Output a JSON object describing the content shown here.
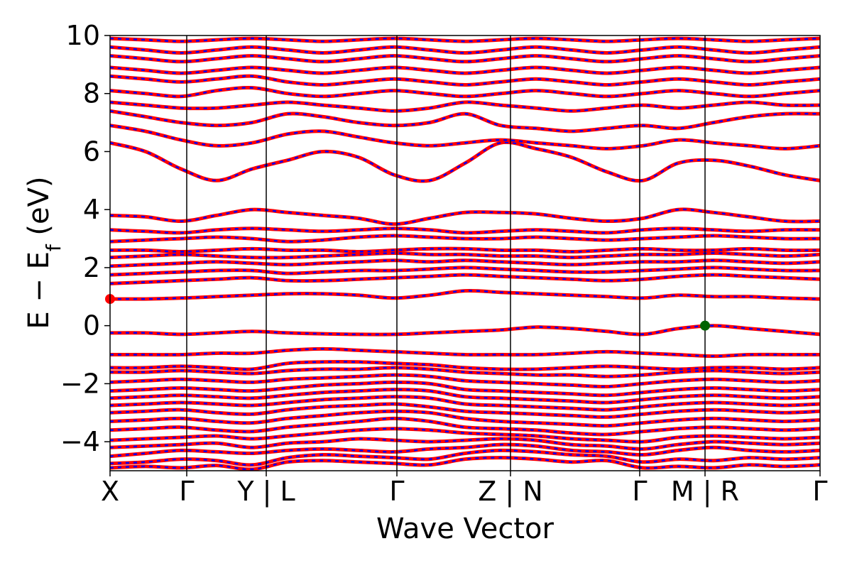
{
  "chart_data": {
    "type": "line",
    "xlabel": "Wave Vector",
    "ylabel_main": "E − E",
    "ylabel_sub": "f",
    "ylabel_unit": " (eV)",
    "ylim": [
      -5,
      10
    ],
    "yticks": [
      {
        "value": -4,
        "label": "−4"
      },
      {
        "value": -2,
        "label": "−2"
      },
      {
        "value": 0,
        "label": "0"
      },
      {
        "value": 2,
        "label": "2"
      },
      {
        "value": 4,
        "label": "4"
      },
      {
        "value": 6,
        "label": "6"
      },
      {
        "value": 8,
        "label": "8"
      },
      {
        "value": 10,
        "label": "10"
      }
    ],
    "xlim": [
      0,
      10
    ],
    "xticks": [
      {
        "value": 0,
        "label": "X"
      },
      {
        "value": 1.08,
        "label": "Γ"
      },
      {
        "value": 2.2,
        "label": "Y | L"
      },
      {
        "value": 4.04,
        "label": "Γ"
      },
      {
        "value": 5.64,
        "label": "Z | N"
      },
      {
        "value": 7.46,
        "label": "Γ"
      },
      {
        "value": 8.38,
        "label": "M | R"
      },
      {
        "value": 10,
        "label": "Γ"
      }
    ],
    "grid": false,
    "spin_up_color": "#ff0000",
    "spin_down_color": "#0000ff",
    "cbm_marker": {
      "x": 0,
      "y": 0.92,
      "color": "#ff0000"
    },
    "vbm_marker": {
      "x": 8.38,
      "y": 0.0,
      "color": "#006400"
    },
    "bands": [
      [
        -4.9,
        -4.85,
        -4.9,
        -4.82,
        -4.95,
        -4.7,
        -4.65,
        -4.7,
        -4.75,
        -4.8,
        -4.6,
        -4.55,
        -4.6,
        -4.7,
        -4.65,
        -4.9,
        -4.85,
        -4.9,
        -4.8,
        -4.85,
        -4.8
      ],
      [
        -4.75,
        -4.7,
        -4.6,
        -4.65,
        -4.8,
        -4.55,
        -4.45,
        -4.5,
        -4.55,
        -4.6,
        -4.4,
        -4.3,
        -4.35,
        -4.45,
        -4.5,
        -4.7,
        -4.6,
        -4.65,
        -4.55,
        -4.6,
        -4.55
      ],
      [
        -4.5,
        -4.4,
        -4.3,
        -4.35,
        -4.4,
        -4.3,
        -4.25,
        -4.3,
        -4.35,
        -4.25,
        -4.2,
        -4.1,
        -4.15,
        -4.3,
        -4.35,
        -4.45,
        -4.3,
        -4.2,
        -4.3,
        -4.35,
        -4.3
      ],
      [
        -4.2,
        -4.15,
        -4.1,
        -4.05,
        -4.2,
        -4.05,
        -4.0,
        -3.9,
        -3.95,
        -4.0,
        -3.95,
        -3.9,
        -3.95,
        -4.1,
        -4.15,
        -4.25,
        -4.1,
        -4.0,
        -4.05,
        -4.1,
        -4.05
      ],
      [
        -3.95,
        -3.9,
        -3.85,
        -3.8,
        -3.9,
        -3.8,
        -3.7,
        -3.6,
        -3.55,
        -3.6,
        -3.7,
        -3.75,
        -3.8,
        -3.9,
        -3.95,
        -4.0,
        -3.85,
        -3.8,
        -3.85,
        -3.9,
        -3.85
      ],
      [
        -3.6,
        -3.55,
        -3.5,
        -3.6,
        -3.65,
        -3.5,
        -3.4,
        -3.3,
        -3.2,
        -3.3,
        -3.5,
        -3.55,
        -3.6,
        -3.7,
        -3.75,
        -3.65,
        -3.55,
        -3.5,
        -3.55,
        -3.6,
        -3.55
      ],
      [
        -3.3,
        -3.25,
        -3.2,
        -3.3,
        -3.35,
        -3.2,
        -3.1,
        -3.0,
        -2.95,
        -3.0,
        -3.2,
        -3.3,
        -3.35,
        -3.4,
        -3.45,
        -3.35,
        -3.25,
        -3.2,
        -3.25,
        -3.3,
        -3.25
      ],
      [
        -3.0,
        -2.95,
        -2.9,
        -3.0,
        -3.05,
        -2.9,
        -2.8,
        -2.75,
        -2.7,
        -2.8,
        -2.95,
        -3.0,
        -3.05,
        -3.1,
        -3.15,
        -3.05,
        -2.95,
        -2.9,
        -2.95,
        -3.0,
        -2.95
      ],
      [
        -2.75,
        -2.7,
        -2.65,
        -2.7,
        -2.75,
        -2.65,
        -2.55,
        -2.5,
        -2.45,
        -2.5,
        -2.7,
        -2.75,
        -2.8,
        -2.85,
        -2.9,
        -2.8,
        -2.7,
        -2.65,
        -2.7,
        -2.75,
        -2.7
      ],
      [
        -2.5,
        -2.45,
        -2.4,
        -2.45,
        -2.5,
        -2.4,
        -2.3,
        -2.25,
        -2.2,
        -2.25,
        -2.45,
        -2.5,
        -2.55,
        -2.6,
        -2.65,
        -2.55,
        -2.45,
        -2.4,
        -2.45,
        -2.5,
        -2.45
      ],
      [
        -2.25,
        -2.2,
        -2.15,
        -2.2,
        -2.25,
        -2.15,
        -2.05,
        -2.0,
        -1.95,
        -2.0,
        -2.2,
        -2.25,
        -2.3,
        -2.35,
        -2.4,
        -2.3,
        -2.2,
        -2.15,
        -2.2,
        -2.25,
        -2.2
      ],
      [
        -1.95,
        -1.9,
        -1.85,
        -1.9,
        -1.95,
        -1.85,
        -1.8,
        -1.75,
        -1.7,
        -1.75,
        -1.9,
        -1.95,
        -2.0,
        -2.05,
        -2.1,
        -2.0,
        -1.9,
        -1.85,
        -1.9,
        -1.95,
        -1.9
      ],
      [
        -1.6,
        -1.6,
        -1.55,
        -1.6,
        -1.65,
        -1.55,
        -1.5,
        -1.5,
        -1.45,
        -1.5,
        -1.6,
        -1.65,
        -1.7,
        -1.7,
        -1.75,
        -1.7,
        -1.6,
        -1.55,
        -1.6,
        -1.65,
        -1.6
      ],
      [
        -1.45,
        -1.45,
        -1.4,
        -1.45,
        -1.5,
        -1.3,
        -1.25,
        -1.25,
        -1.3,
        -1.35,
        -1.45,
        -1.5,
        -1.5,
        -1.45,
        -1.4,
        -1.45,
        -1.5,
        -1.45,
        -1.45,
        -1.5,
        -1.45
      ],
      [
        -1.0,
        -1.0,
        -1.0,
        -0.95,
        -0.95,
        -0.85,
        -0.8,
        -0.85,
        -0.9,
        -0.95,
        -1.0,
        -1.0,
        -1.0,
        -0.95,
        -0.9,
        -0.95,
        -1.0,
        -1.05,
        -1.0,
        -1.0,
        -1.0
      ],
      [
        -0.25,
        -0.25,
        -0.3,
        -0.25,
        -0.2,
        -0.25,
        -0.28,
        -0.3,
        -0.3,
        -0.25,
        -0.2,
        -0.15,
        -0.05,
        -0.1,
        -0.2,
        -0.3,
        -0.1,
        0.0,
        -0.1,
        -0.2,
        -0.3
      ],
      [
        0.92,
        0.92,
        0.95,
        1.0,
        1.05,
        1.1,
        1.1,
        1.05,
        0.95,
        1.05,
        1.2,
        1.15,
        1.1,
        1.05,
        1.0,
        0.95,
        1.05,
        1.0,
        1.0,
        0.95,
        0.92
      ],
      [
        1.45,
        1.5,
        1.55,
        1.6,
        1.65,
        1.55,
        1.55,
        1.6,
        1.65,
        1.7,
        1.75,
        1.7,
        1.65,
        1.6,
        1.55,
        1.6,
        1.7,
        1.75,
        1.7,
        1.65,
        1.6
      ],
      [
        1.75,
        1.8,
        1.85,
        1.9,
        1.9,
        1.8,
        1.85,
        1.9,
        1.9,
        1.95,
        2.0,
        1.95,
        1.9,
        1.85,
        1.85,
        1.9,
        1.95,
        2.0,
        1.95,
        1.9,
        1.9
      ],
      [
        2.05,
        2.1,
        2.15,
        2.2,
        2.15,
        2.1,
        2.15,
        2.2,
        2.25,
        2.2,
        2.25,
        2.2,
        2.15,
        2.1,
        2.15,
        2.2,
        2.2,
        2.25,
        2.2,
        2.15,
        2.2
      ],
      [
        2.35,
        2.4,
        2.45,
        2.4,
        2.35,
        2.35,
        2.4,
        2.45,
        2.5,
        2.45,
        2.45,
        2.4,
        2.4,
        2.35,
        2.4,
        2.45,
        2.45,
        2.5,
        2.45,
        2.4,
        2.45
      ],
      [
        2.6,
        2.6,
        2.55,
        2.6,
        2.65,
        2.6,
        2.6,
        2.55,
        2.6,
        2.65,
        2.65,
        2.6,
        2.6,
        2.55,
        2.6,
        2.65,
        2.6,
        2.6,
        2.65,
        2.6,
        2.6
      ],
      [
        2.9,
        2.95,
        3.0,
        3.05,
        3.0,
        2.9,
        2.95,
        3.05,
        3.1,
        3.05,
        3.0,
        3.0,
        3.05,
        3.0,
        2.95,
        3.0,
        3.05,
        3.1,
        3.05,
        3.0,
        3.0
      ],
      [
        3.3,
        3.25,
        3.2,
        3.3,
        3.35,
        3.3,
        3.25,
        3.3,
        3.35,
        3.3,
        3.2,
        3.25,
        3.3,
        3.25,
        3.2,
        3.3,
        3.35,
        3.3,
        3.25,
        3.3,
        3.3
      ],
      [
        3.8,
        3.75,
        3.6,
        3.8,
        4.0,
        3.9,
        3.8,
        3.7,
        3.5,
        3.7,
        3.9,
        3.9,
        3.85,
        3.7,
        3.6,
        3.7,
        4.0,
        3.9,
        3.75,
        3.6,
        3.6
      ],
      [
        6.3,
        6.0,
        5.4,
        5.0,
        5.4,
        5.7,
        6.0,
        5.8,
        5.2,
        5.0,
        5.6,
        6.3,
        6.1,
        5.8,
        5.3,
        5.0,
        5.6,
        5.7,
        5.5,
        5.2,
        5.0
      ],
      [
        6.9,
        6.7,
        6.4,
        6.2,
        6.3,
        6.6,
        6.7,
        6.5,
        6.3,
        6.2,
        6.3,
        6.4,
        6.3,
        6.2,
        6.1,
        6.2,
        6.4,
        6.3,
        6.2,
        6.1,
        6.2
      ],
      [
        7.4,
        7.2,
        7.0,
        6.9,
        7.0,
        7.3,
        7.2,
        7.0,
        6.9,
        7.0,
        7.3,
        6.9,
        6.8,
        6.7,
        6.8,
        6.9,
        6.8,
        7.0,
        7.2,
        7.3,
        7.3
      ],
      [
        7.7,
        7.6,
        7.5,
        7.5,
        7.6,
        7.7,
        7.6,
        7.5,
        7.4,
        7.5,
        7.7,
        7.6,
        7.5,
        7.4,
        7.5,
        7.6,
        7.5,
        7.6,
        7.7,
        7.6,
        7.6
      ],
      [
        8.1,
        8.0,
        7.9,
        8.1,
        8.2,
        8.0,
        7.9,
        8.0,
        8.1,
        8.0,
        7.9,
        8.0,
        8.1,
        8.0,
        7.9,
        8.0,
        8.1,
        8.0,
        7.9,
        8.0,
        8.1
      ],
      [
        8.6,
        8.5,
        8.4,
        8.5,
        8.6,
        8.4,
        8.3,
        8.4,
        8.5,
        8.4,
        8.3,
        8.4,
        8.5,
        8.4,
        8.3,
        8.4,
        8.5,
        8.4,
        8.3,
        8.4,
        8.5
      ],
      [
        8.9,
        8.8,
        8.7,
        8.8,
        8.9,
        8.8,
        8.7,
        8.8,
        8.9,
        8.8,
        8.7,
        8.8,
        8.9,
        8.8,
        8.7,
        8.8,
        8.9,
        8.8,
        8.7,
        8.8,
        8.9
      ],
      [
        9.3,
        9.2,
        9.1,
        9.2,
        9.3,
        9.2,
        9.1,
        9.2,
        9.3,
        9.2,
        9.1,
        9.2,
        9.3,
        9.2,
        9.1,
        9.2,
        9.3,
        9.2,
        9.1,
        9.2,
        9.3
      ],
      [
        9.6,
        9.5,
        9.4,
        9.5,
        9.6,
        9.5,
        9.4,
        9.5,
        9.6,
        9.5,
        9.4,
        9.5,
        9.6,
        9.5,
        9.4,
        9.5,
        9.6,
        9.5,
        9.4,
        9.5,
        9.6
      ],
      [
        9.9,
        9.85,
        9.8,
        9.85,
        9.9,
        9.85,
        9.8,
        9.85,
        9.9,
        9.85,
        9.8,
        9.85,
        9.9,
        9.85,
        9.8,
        9.85,
        9.9,
        9.85,
        9.8,
        9.85,
        9.9
      ]
    ]
  }
}
